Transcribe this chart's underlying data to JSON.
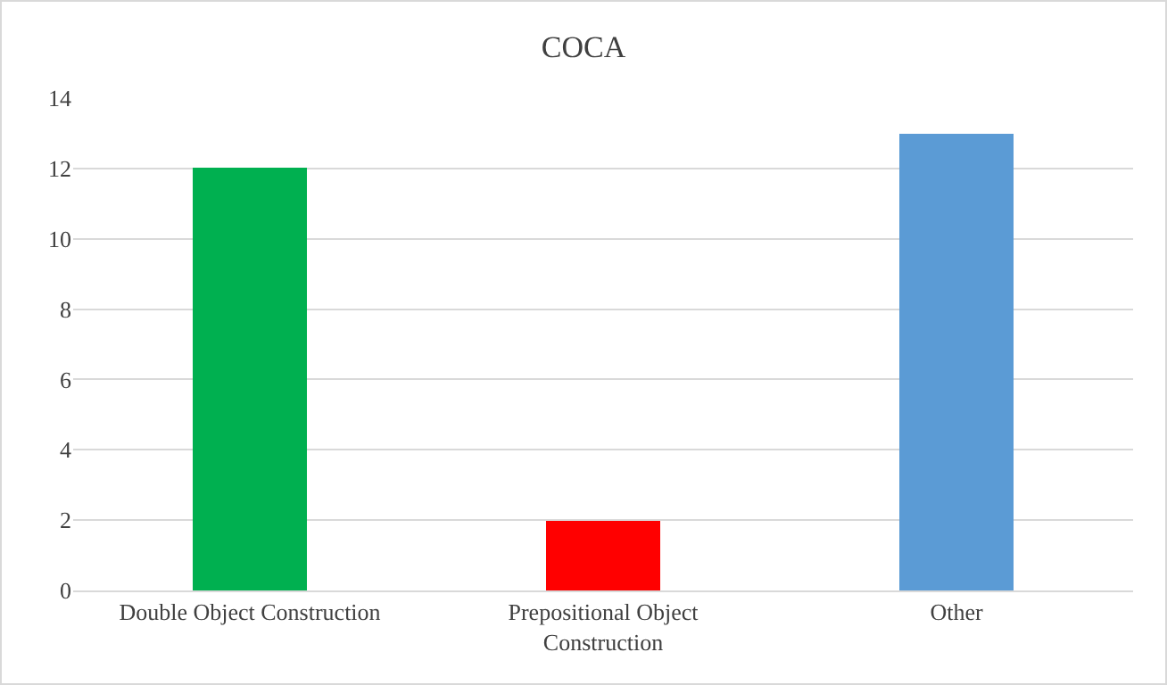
{
  "chart_data": {
    "type": "bar",
    "title": "COCA",
    "categories": [
      "Double Object Construction",
      "Prepositional Object Construction",
      "Other"
    ],
    "values": [
      12,
      2,
      13
    ],
    "colors": [
      "#00b050",
      "#ff0000",
      "#5b9bd5"
    ],
    "ylim": [
      0,
      14
    ],
    "yticks": [
      0,
      2,
      4,
      6,
      8,
      10,
      12,
      14
    ],
    "grid": "y",
    "legend": false
  }
}
